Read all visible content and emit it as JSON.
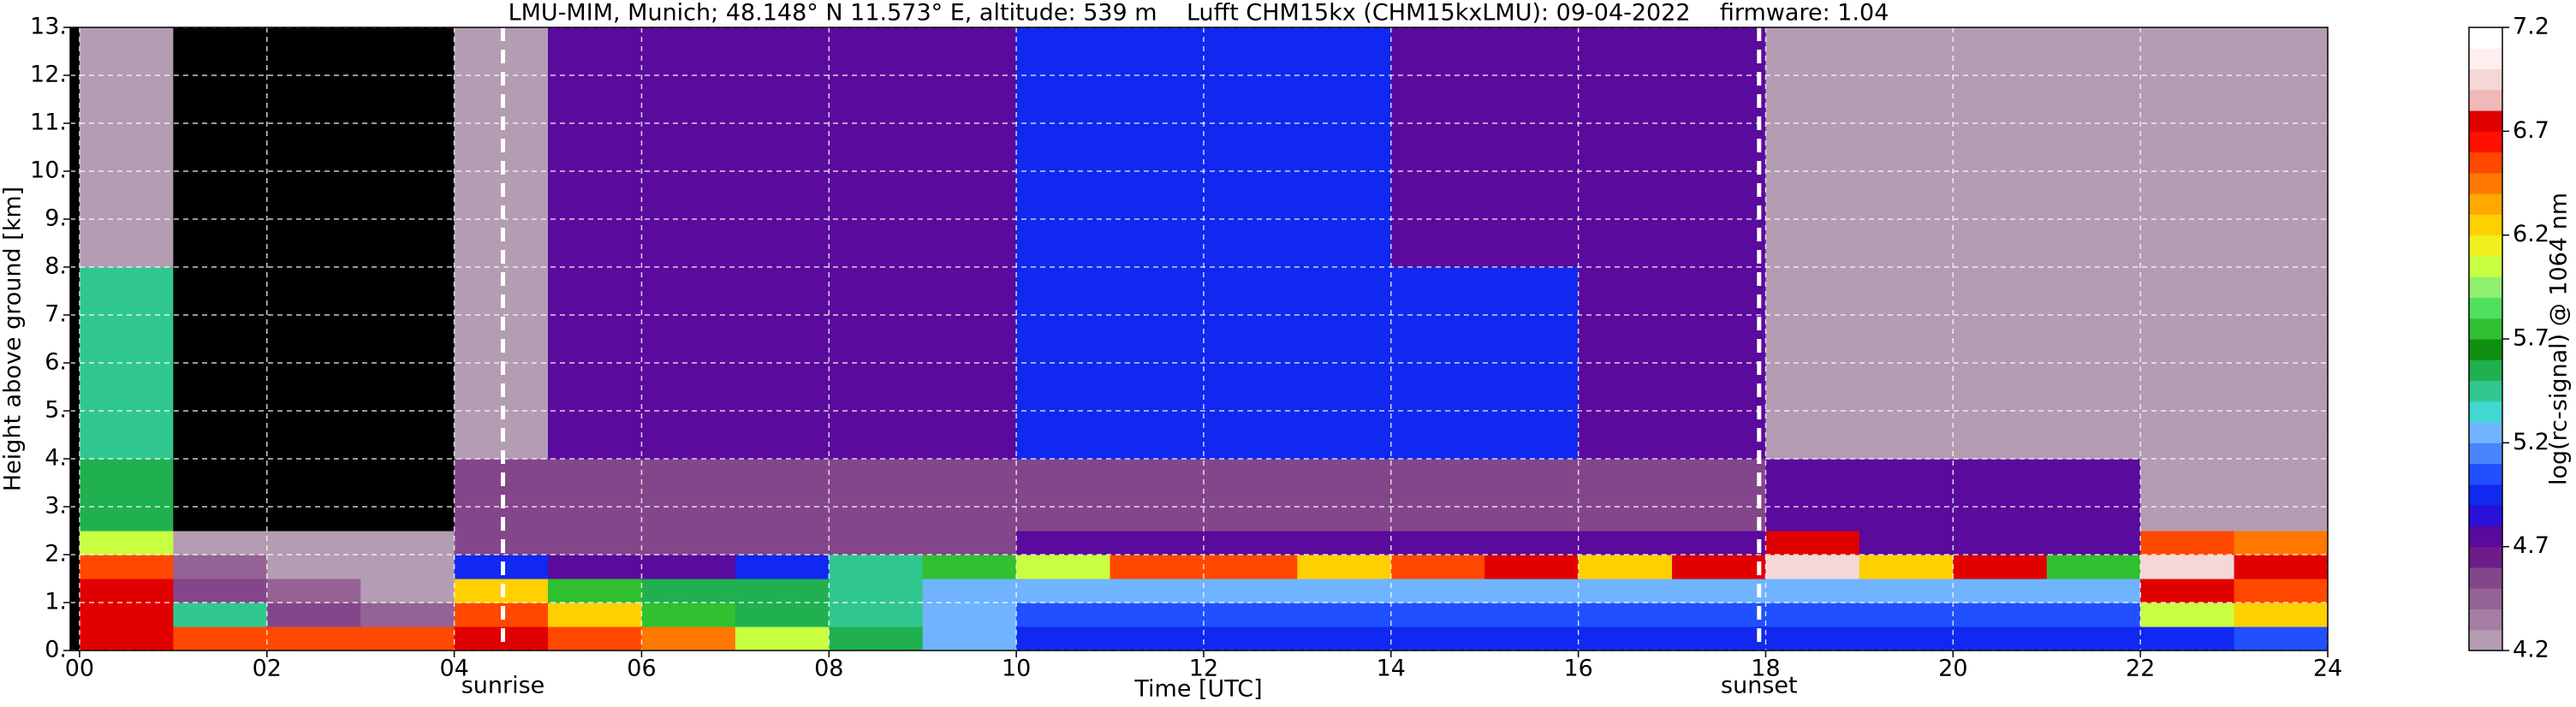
{
  "chart_data": {
    "type": "heatmap",
    "title": "LMU-MIM, Munich; 48.148° N 11.573° E, altitude: 539 m    Lufft CHM15kx (CHM15kxLMU): 09-04-2022    firmware: 1.04",
    "xlabel": "Time [UTC]",
    "ylabel": "Height above ground [km]",
    "colorbar_label": "log(rc-signal) @ 1064 nm",
    "xlim": [
      -0.1,
      24
    ],
    "ylim": [
      0,
      13
    ],
    "xticks": [
      {
        "value": 0,
        "label": "00"
      },
      {
        "value": 2,
        "label": "02"
      },
      {
        "value": 4,
        "label": "04"
      },
      {
        "value": 6,
        "label": "06"
      },
      {
        "value": 8,
        "label": "08"
      },
      10,
      12,
      14,
      16,
      18,
      20,
      22,
      24
    ],
    "yticks": [
      {
        "value": 0,
        "label": "0."
      },
      {
        "value": 1,
        "label": "1."
      },
      {
        "value": 2,
        "label": "2."
      },
      {
        "value": 3,
        "label": "3."
      },
      {
        "value": 4,
        "label": "4."
      },
      {
        "value": 5,
        "label": "5."
      },
      {
        "value": 6,
        "label": "6."
      },
      {
        "value": 7,
        "label": "7."
      },
      {
        "value": 8,
        "label": "8."
      },
      {
        "value": 9,
        "label": "9."
      },
      {
        "value": 10,
        "label": "10."
      },
      {
        "value": 11,
        "label": "11."
      },
      {
        "value": 12,
        "label": "12."
      },
      {
        "value": 13,
        "label": "13."
      }
    ],
    "grid": true,
    "x_edges": [
      0,
      1,
      2,
      3,
      4,
      5,
      6,
      7,
      8,
      9,
      10,
      11,
      12,
      13,
      14,
      15,
      16,
      17,
      18,
      19,
      20,
      21,
      22,
      23,
      24
    ],
    "y_edges": [
      0,
      0.5,
      1,
      1.5,
      2,
      2.5,
      4,
      8,
      13
    ],
    "z": [
      [
        6.7,
        6.5,
        6.6,
        6.5,
        6.8,
        6.6,
        6.4,
        6.0,
        5.6,
        5.3,
        5.0,
        5.0,
        5.0,
        5.0,
        5.0,
        5.0,
        5.0,
        5.0,
        5.0,
        5.0,
        5.0,
        5.0,
        5.0,
        5.1
      ],
      [
        6.8,
        5.5,
        4.6,
        4.5,
        6.5,
        6.3,
        5.8,
        5.6,
        5.5,
        5.3,
        5.1,
        5.1,
        5.1,
        5.1,
        5.1,
        5.1,
        5.1,
        5.1,
        5.1,
        5.1,
        5.1,
        5.1,
        6.0,
        6.2
      ],
      [
        6.8,
        4.6,
        4.4,
        4.3,
        6.2,
        5.8,
        5.6,
        5.6,
        5.4,
        5.3,
        5.2,
        5.2,
        5.2,
        5.2,
        5.2,
        5.2,
        5.2,
        5.2,
        5.2,
        5.2,
        5.2,
        5.2,
        6.8,
        6.6
      ],
      [
        6.6,
        4.4,
        4.3,
        4.3,
        5.0,
        4.8,
        4.7,
        5.0,
        5.5,
        5.8,
        6.0,
        6.5,
        6.6,
        6.3,
        6.5,
        6.7,
        6.3,
        6.7,
        7.0,
        6.2,
        6.8,
        5.8,
        7.0,
        6.8
      ],
      [
        6.0,
        4.3,
        4.3,
        4.3,
        4.6,
        4.6,
        4.6,
        4.6,
        4.6,
        4.6,
        4.7,
        4.7,
        4.7,
        4.7,
        4.7,
        4.7,
        4.7,
        4.7,
        6.8,
        4.8,
        4.8,
        4.8,
        6.6,
        6.4
      ],
      [
        5.6,
        4.0,
        4.0,
        4.0,
        4.6,
        4.6,
        4.6,
        4.6,
        4.6,
        4.6,
        4.6,
        4.6,
        4.6,
        4.6,
        4.6,
        4.6,
        4.6,
        4.6,
        4.7,
        4.7,
        4.7,
        4.7,
        4.3,
        4.3
      ],
      [
        5.5,
        4.0,
        4.0,
        4.0,
        4.3,
        4.7,
        4.7,
        4.7,
        4.7,
        4.7,
        4.9,
        4.9,
        4.9,
        4.9,
        4.9,
        4.9,
        4.7,
        4.7,
        4.2,
        4.2,
        4.2,
        4.2,
        4.2,
        4.2
      ],
      [
        4.2,
        4.1,
        4.1,
        4.1,
        4.3,
        4.7,
        4.7,
        4.7,
        4.7,
        4.7,
        4.9,
        4.9,
        4.9,
        4.9,
        4.7,
        4.7,
        4.7,
        4.7,
        4.2,
        4.2,
        4.2,
        4.2,
        4.2,
        4.2
      ]
    ],
    "zlim": [
      4.2,
      7.2
    ],
    "zticks": [
      4.2,
      4.7,
      5.2,
      5.7,
      6.2,
      6.7,
      7.2
    ],
    "under_color": "#000000",
    "colors": [
      "#b49cb2",
      "#a47ea4",
      "#946294",
      "#84468a",
      "#6e1c88",
      "#5a0a9c",
      "#2a10d8",
      "#1028f0",
      "#2050ff",
      "#4a84ff",
      "#70b4ff",
      "#40d8d0",
      "#30c890",
      "#20b050",
      "#109010",
      "#30c030",
      "#50e060",
      "#90f070",
      "#c8ff40",
      "#f0f020",
      "#ffd000",
      "#ffa800",
      "#ff7800",
      "#ff4800",
      "#ff1000",
      "#e00000",
      "#f0b8b8",
      "#f4d8d8",
      "#fff0f0",
      "#ffffff"
    ],
    "annotations": [
      {
        "text": "sunrise",
        "x": 4.52
      },
      {
        "text": "sunset",
        "x": 17.93
      }
    ]
  }
}
